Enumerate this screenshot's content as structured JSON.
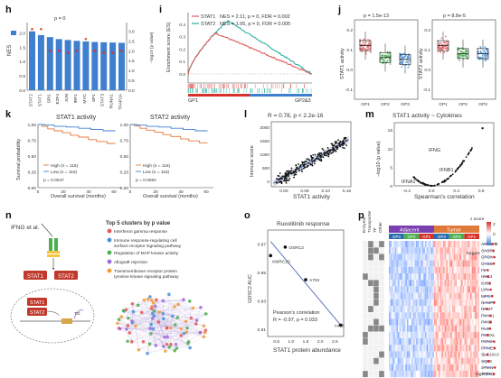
{
  "panel_labels": {
    "h": "h",
    "i": "i",
    "j": "j",
    "k": "k",
    "l": "l",
    "m": "m",
    "n": "n",
    "o": "o",
    "p": "p"
  },
  "panel_h": {
    "ylabel_left": "NES",
    "ylabel_right": "−log10 (p value)",
    "pval": "p = 0",
    "yticks_left": [
      "0.0",
      "0.5",
      "1.0",
      "1.5",
      "2.0"
    ],
    "yticks_right": [
      "0.0",
      "0.5",
      "1.0",
      "1.5",
      "2.0",
      "2.5",
      "3.0"
    ]
  },
  "panel_i": {
    "ylabel": "Enrichment score (ES)",
    "legend": [
      {
        "name": "STAT1",
        "stats": "NES = 2.11, p = 0, FDR = 0.002",
        "color": "#e05a5a"
      },
      {
        "name": "STAT2",
        "stats": "NES = 1.95, p = 0, FDR = 0.005",
        "color": "#2bb0a0"
      }
    ],
    "yticks": [
      "0.0",
      "0.1",
      "0.2",
      "0.3",
      "0.4"
    ],
    "xleft": "GP1",
    "xright": "GP2&3"
  },
  "panel_j": {
    "left": {
      "ylabel": "STAT1 activity",
      "pval": "p = 1.5e-13",
      "yticks": [
        "-0.1",
        "0.0",
        "0.1",
        "0.2"
      ]
    },
    "right": {
      "ylabel": "STAT2 activity",
      "pval": "p = 8.8e-5",
      "yticks": [
        "-0.1",
        "0.0",
        "0.1",
        "0.2"
      ]
    },
    "groups": [
      "GP1",
      "GP2",
      "GP3"
    ],
    "colors": [
      "#e05a5a",
      "#4caf50",
      "#4a90d9"
    ]
  },
  "panel_k": {
    "left": {
      "title": "STAT1 activity",
      "pval": "p = 0.0047"
    },
    "right": {
      "title": "STAT2 activity",
      "pval": "p = 0.0062"
    },
    "ylabel": "Survival probability",
    "xlabel": "Overall survival (months)",
    "legend_high": "High (n = 116)",
    "legend_low": "Low (n = 116)",
    "yticks": [
      "0.00",
      "0.25",
      "0.50",
      "0.75",
      "1.00"
    ],
    "xticks": [
      "0",
      "20",
      "40",
      "60"
    ]
  },
  "panel_l": {
    "title": "R = 0.78, p < 2.2e-16",
    "ylabel": "Immune score",
    "xlabel": "STAT1 activity",
    "yticks": [
      "0",
      "500",
      "1000",
      "1500",
      "2000"
    ],
    "xticks": [
      "0.00",
      "0.05",
      "0.10",
      "0.15"
    ]
  },
  "panel_m": {
    "title": "STAT1 activity ~ Cytokines",
    "ylabel": "−log10 (p value)",
    "xlabel": "Spearman's correlation",
    "labels": [
      "IFNG",
      "IFNB1",
      "IFNA1"
    ],
    "yticks": [
      "0",
      "5",
      "10",
      "15"
    ],
    "xticks": [
      "-0.4",
      "0.0",
      "0.4",
      "0.8"
    ]
  },
  "panel_n": {
    "ligand": "IFNG et al.",
    "stat1": "STAT1",
    "stat2": "STAT2",
    "tg": "TG",
    "clusters_title": "Top 5 clusters by p value",
    "clusters": [
      {
        "text": "Interferon gamma response",
        "color": "#e05a5a"
      },
      {
        "text": "Immune response-regulating cell surface receptor signaling pathway",
        "color": "#4a90d9"
      },
      {
        "text": "Regulation of MAP kinase activity",
        "color": "#4caf50"
      },
      {
        "text": "Allograft rejection",
        "color": "#9c6ad6"
      },
      {
        "text": "Transmembrane receptor protein tyrosine kinase signaling pathway",
        "color": "#f39c3c"
      }
    ]
  },
  "panel_o": {
    "title": "Ruxolitinib response",
    "ylabel": "GDSC2 AUC",
    "xlabel": "STAT1 protein abundance",
    "stats_line1": "Pearson's correlation",
    "stats_line2": "R = -0.97, p = 0.033",
    "yticks": [
      "0.91",
      "0.93",
      "0.95",
      "0.97"
    ],
    "xticks": [
      "0.5",
      "1.0",
      "1.5",
      "2.0",
      "2.5"
    ],
    "points_labels": [
      "OSRC2",
      "KMRC20",
      "A704",
      "A498"
    ]
  },
  "panel_p": {
    "col_headers": [
      "Enzyme",
      "Transporter",
      "TF",
      "Other"
    ],
    "adjacent": "Adjacent",
    "tumor": "Tumor",
    "groups": [
      "GP3",
      "GP2",
      "GP1",
      "GP3",
      "GP2",
      "GP1"
    ],
    "legend_title": "z score",
    "legend_ticks": [
      "2",
      "0",
      "-2"
    ],
    "targets_title": "targets",
    "xlabel": "log2 (FC)",
    "genes": [
      "ARL6IP5",
      "CASP1",
      "CPOX",
      "CYBB",
      "F2",
      "HM13",
      "IL411",
      "LYN",
      "MPO",
      "NAMPT",
      "NNMT",
      "P4HA1",
      "P4HB",
      "PLG",
      "PODXL",
      "PON2",
      "PPME1",
      "SLC16A3",
      "SQLE",
      "STIM1",
      "TFRC"
    ]
  }
}
